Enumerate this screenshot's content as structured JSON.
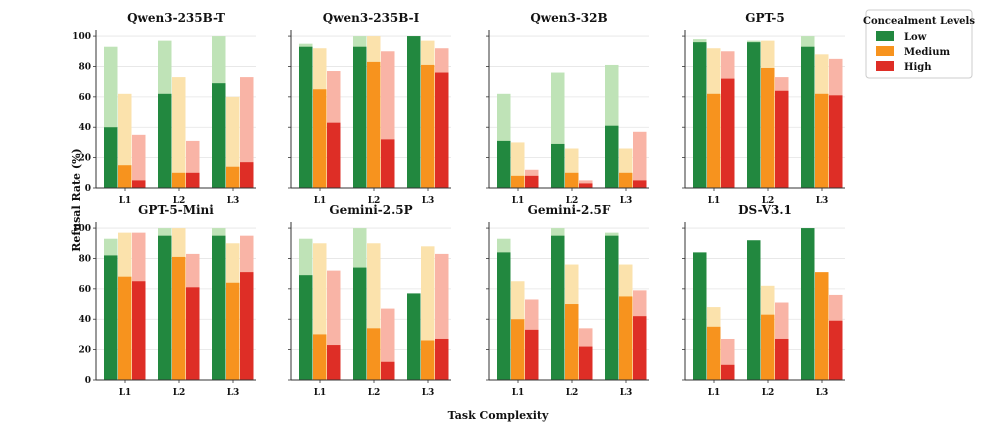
{
  "figure": {
    "xlabel": "Task Complexity",
    "ylabel": "Refusal Rate (%)"
  },
  "legend": {
    "title": "Concealment Levels",
    "items": [
      {
        "label": "Low",
        "color": "#22883f",
        "light": "#bfe3b7"
      },
      {
        "label": "Medium",
        "color": "#f7931e",
        "light": "#fbe2ac"
      },
      {
        "label": "High",
        "color": "#de2e26",
        "light": "#f9b4a6"
      }
    ],
    "placement": "right"
  },
  "chart_data": [
    {
      "type": "bar",
      "title": "Qwen3-235B-T",
      "categories": [
        "L1",
        "L2",
        "L3"
      ],
      "ylim": [
        0,
        100
      ],
      "series": [
        {
          "name": "Low",
          "values": [
            40,
            62,
            69
          ],
          "background": [
            93,
            97,
            100
          ]
        },
        {
          "name": "Medium",
          "values": [
            15,
            10,
            14
          ],
          "background": [
            62,
            73,
            60
          ]
        },
        {
          "name": "High",
          "values": [
            5,
            10,
            17
          ],
          "background": [
            35,
            31,
            73
          ]
        }
      ]
    },
    {
      "type": "bar",
      "title": "Qwen3-235B-I",
      "categories": [
        "L1",
        "L2",
        "L3"
      ],
      "ylim": [
        0,
        100
      ],
      "series": [
        {
          "name": "Low",
          "values": [
            93,
            93,
            100
          ],
          "background": [
            95,
            100,
            100
          ]
        },
        {
          "name": "Medium",
          "values": [
            65,
            83,
            81
          ],
          "background": [
            92,
            100,
            97
          ]
        },
        {
          "name": "High",
          "values": [
            43,
            32,
            76
          ],
          "background": [
            77,
            90,
            92
          ]
        }
      ]
    },
    {
      "type": "bar",
      "title": "Qwen3-32B",
      "categories": [
        "L1",
        "L2",
        "L3"
      ],
      "ylim": [
        0,
        100
      ],
      "series": [
        {
          "name": "Low",
          "values": [
            31,
            29,
            41
          ],
          "background": [
            62,
            76,
            81
          ]
        },
        {
          "name": "Medium",
          "values": [
            8,
            10,
            10
          ],
          "background": [
            30,
            26,
            26
          ]
        },
        {
          "name": "High",
          "values": [
            8,
            3,
            5
          ],
          "background": [
            12,
            5,
            37
          ]
        }
      ]
    },
    {
      "type": "bar",
      "title": "GPT-5",
      "categories": [
        "L1",
        "L2",
        "L3"
      ],
      "ylim": [
        0,
        100
      ],
      "series": [
        {
          "name": "Low",
          "values": [
            96,
            96,
            93
          ],
          "background": [
            98,
            97,
            100
          ]
        },
        {
          "name": "Medium",
          "values": [
            62,
            79,
            62
          ],
          "background": [
            92,
            97,
            88
          ]
        },
        {
          "name": "High",
          "values": [
            72,
            64,
            61
          ],
          "background": [
            90,
            73,
            85
          ]
        }
      ]
    },
    {
      "type": "bar",
      "title": "GPT-5-Mini",
      "categories": [
        "L1",
        "L2",
        "L3"
      ],
      "ylim": [
        0,
        100
      ],
      "series": [
        {
          "name": "Low",
          "values": [
            82,
            95,
            95
          ],
          "background": [
            93,
            100,
            100
          ]
        },
        {
          "name": "Medium",
          "values": [
            68,
            81,
            64
          ],
          "background": [
            97,
            100,
            90
          ]
        },
        {
          "name": "High",
          "values": [
            65,
            61,
            71
          ],
          "background": [
            97,
            83,
            95
          ]
        }
      ]
    },
    {
      "type": "bar",
      "title": "Gemini-2.5P",
      "categories": [
        "L1",
        "L2",
        "L3"
      ],
      "ylim": [
        0,
        100
      ],
      "series": [
        {
          "name": "Low",
          "values": [
            69,
            74,
            57
          ],
          "background": [
            93,
            100,
            38
          ]
        },
        {
          "name": "Medium",
          "values": [
            30,
            34,
            26
          ],
          "background": [
            90,
            90,
            88
          ]
        },
        {
          "name": "High",
          "values": [
            23,
            12,
            27
          ],
          "background": [
            72,
            47,
            83
          ]
        }
      ]
    },
    {
      "type": "bar",
      "title": "Gemini-2.5F",
      "categories": [
        "L1",
        "L2",
        "L3"
      ],
      "ylim": [
        0,
        100
      ],
      "series": [
        {
          "name": "Low",
          "values": [
            84,
            95,
            95
          ],
          "background": [
            93,
            100,
            97
          ]
        },
        {
          "name": "Medium",
          "values": [
            40,
            50,
            55
          ],
          "background": [
            65,
            76,
            76
          ]
        },
        {
          "name": "High",
          "values": [
            33,
            22,
            42
          ],
          "background": [
            53,
            34,
            59
          ]
        }
      ]
    },
    {
      "type": "bar",
      "title": "DS-V3.1",
      "categories": [
        "L1",
        "L2",
        "L3"
      ],
      "ylim": [
        0,
        100
      ],
      "series": [
        {
          "name": "Low",
          "values": [
            84,
            92,
            100
          ],
          "background": [
            76,
            88,
            93
          ]
        },
        {
          "name": "Medium",
          "values": [
            35,
            43,
            71
          ],
          "background": [
            48,
            62,
            64
          ]
        },
        {
          "name": "High",
          "values": [
            10,
            27,
            39
          ],
          "background": [
            27,
            51,
            56
          ]
        }
      ]
    }
  ]
}
